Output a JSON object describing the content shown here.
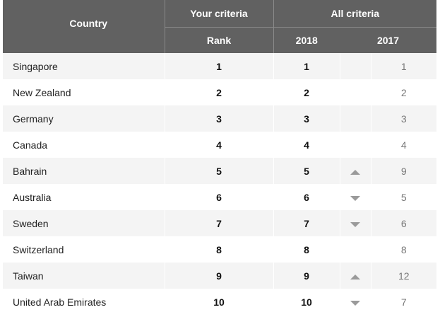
{
  "header": {
    "your_criteria": "Your criteria",
    "all_criteria": "All criteria",
    "country": "Country",
    "rank": "Rank",
    "year_2018": "2018",
    "year_2017": "2017"
  },
  "colors": {
    "header_bg": "#616161",
    "header_text": "#ffffff",
    "row_alt": "#f4f4f4",
    "arrow": "#9a9a9a"
  },
  "rows": [
    {
      "country": "Singapore",
      "rank": "1",
      "y2018": "1",
      "change": "none",
      "y2017": "1"
    },
    {
      "country": "New Zealand",
      "rank": "2",
      "y2018": "2",
      "change": "none",
      "y2017": "2"
    },
    {
      "country": "Germany",
      "rank": "3",
      "y2018": "3",
      "change": "none",
      "y2017": "3"
    },
    {
      "country": "Canada",
      "rank": "4",
      "y2018": "4",
      "change": "none",
      "y2017": "4"
    },
    {
      "country": "Bahrain",
      "rank": "5",
      "y2018": "5",
      "change": "up",
      "y2017": "9"
    },
    {
      "country": "Australia",
      "rank": "6",
      "y2018": "6",
      "change": "down",
      "y2017": "5"
    },
    {
      "country": "Sweden",
      "rank": "7",
      "y2018": "7",
      "change": "down",
      "y2017": "6"
    },
    {
      "country": "Switzerland",
      "rank": "8",
      "y2018": "8",
      "change": "none",
      "y2017": "8"
    },
    {
      "country": "Taiwan",
      "rank": "9",
      "y2018": "9",
      "change": "up",
      "y2017": "12"
    },
    {
      "country": "United Arab Emirates",
      "rank": "10",
      "y2018": "10",
      "change": "down",
      "y2017": "7"
    }
  ]
}
